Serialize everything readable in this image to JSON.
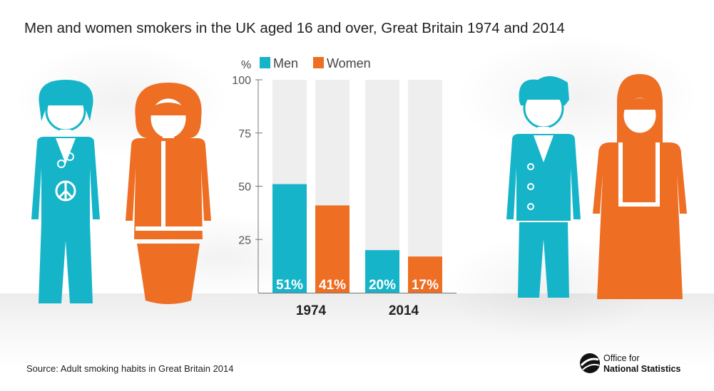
{
  "title": "Men and women smokers in the UK aged 16 and over, Great Britain 1974 and 2014",
  "source": "Source: Adult smoking habits in Great Britain 2014",
  "logo": {
    "line1": "Office for",
    "line2": "National Statistics"
  },
  "colors": {
    "men": "#16b4c8",
    "women": "#ee6e24",
    "track": "#eeeeee",
    "axis": "#777777"
  },
  "chart_data": {
    "type": "bar",
    "ylabel": "%",
    "ylim": [
      0,
      100
    ],
    "yticks": [
      25,
      50,
      75,
      100
    ],
    "categories": [
      "1974",
      "2014"
    ],
    "series": [
      {
        "name": "Men",
        "values": [
          51,
          20
        ],
        "labels": [
          "51%",
          "20%"
        ]
      },
      {
        "name": "Women",
        "values": [
          41,
          17
        ],
        "labels": [
          "41%",
          "17%"
        ]
      }
    ],
    "legend": "top"
  }
}
